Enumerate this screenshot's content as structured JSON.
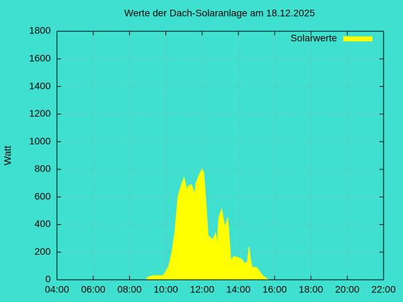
{
  "chart_data": {
    "type": "area",
    "title": "Werte der Dach-Solaranlage am 18.12.2025",
    "y_label": "Watt",
    "x": [
      "08:55",
      "09:00",
      "09:20",
      "09:50",
      "10:00",
      "10:10",
      "10:20",
      "10:30",
      "10:40",
      "10:50",
      "11:00",
      "11:10",
      "11:15",
      "11:25",
      "11:35",
      "11:40",
      "11:50",
      "12:00",
      "12:05",
      "12:10",
      "12:20",
      "12:35",
      "12:45",
      "12:50",
      "12:55",
      "13:05",
      "13:15",
      "13:25",
      "13:35",
      "13:45",
      "14:00",
      "14:10",
      "14:20",
      "14:30",
      "14:35",
      "14:40",
      "14:45",
      "15:00",
      "15:10",
      "15:20",
      "15:30",
      "15:40"
    ],
    "series": [
      {
        "name": "Solarwerte",
        "color": "#ffff00",
        "values": [
          0,
          20,
          30,
          30,
          60,
          100,
          200,
          350,
          600,
          680,
          740,
          650,
          680,
          690,
          620,
          700,
          760,
          800,
          780,
          650,
          320,
          290,
          340,
          250,
          450,
          510,
          380,
          450,
          140,
          170,
          160,
          150,
          120,
          130,
          240,
          150,
          90,
          90,
          60,
          30,
          15,
          0
        ]
      }
    ],
    "xlim": [
      "04:00",
      "22:00"
    ],
    "xticks": [
      "04:00",
      "06:00",
      "08:00",
      "10:00",
      "12:00",
      "14:00",
      "16:00",
      "18:00",
      "20:00",
      "22:00"
    ],
    "ylim": [
      0,
      1800
    ],
    "yticks": [
      0,
      200,
      400,
      600,
      800,
      1000,
      1200,
      1400,
      1600,
      1800
    ],
    "grid": true,
    "legend": "top-right"
  }
}
